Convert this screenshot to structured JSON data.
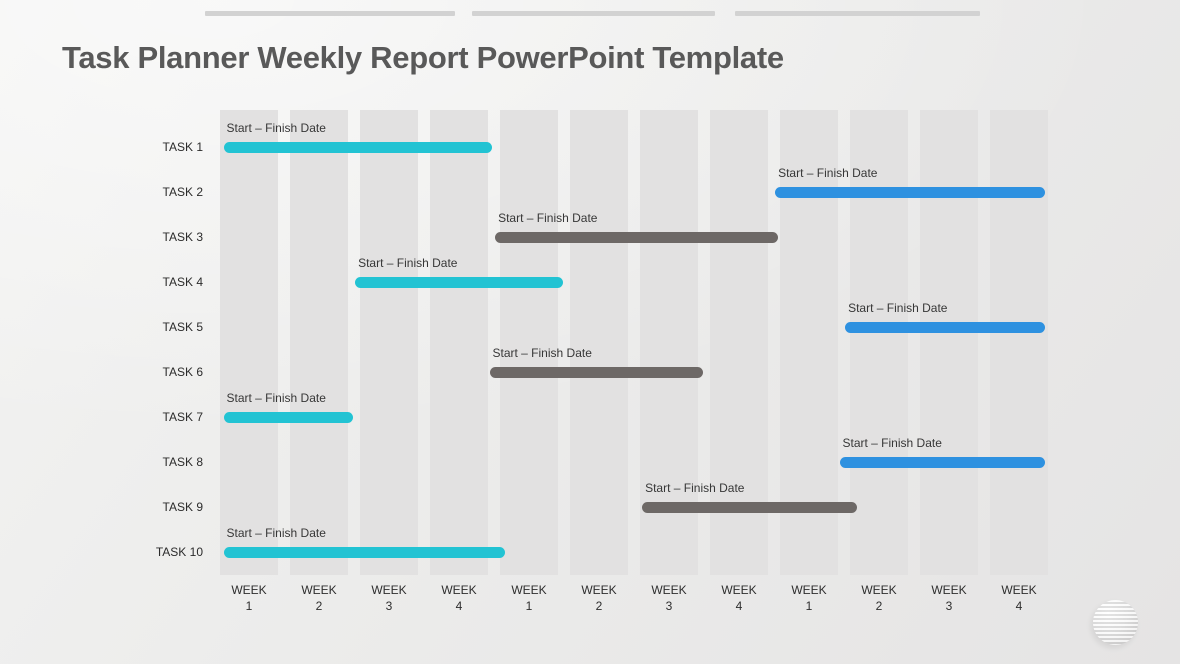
{
  "page": {
    "title": "Task Planner Weekly Report PowerPoint Template"
  },
  "decor": {
    "top_placeholder_bar_color": "#d2d2d2",
    "logo": "striped-sphere"
  },
  "colors": {
    "cyan": "#22c3d3",
    "blue": "#2e91e0",
    "gray": "#6d6866",
    "band": "#e2e1e1",
    "title_text": "#595959",
    "label_text": "#2b2b2b"
  },
  "chart_data": {
    "type": "gantt",
    "title": "Task Planner Weekly Report",
    "x_axis": {
      "unit": "weeks",
      "range_weeks": [
        0,
        12
      ],
      "labels": [
        {
          "l1": "WEEK",
          "l2": "1"
        },
        {
          "l1": "WEEK",
          "l2": "2"
        },
        {
          "l1": "WEEK",
          "l2": "3"
        },
        {
          "l1": "WEEK",
          "l2": "4"
        },
        {
          "l1": "WEEK",
          "l2": "1"
        },
        {
          "l1": "WEEK",
          "l2": "2"
        },
        {
          "l1": "WEEK",
          "l2": "3"
        },
        {
          "l1": "WEEK",
          "l2": "4"
        },
        {
          "l1": "WEEK",
          "l2": "1"
        },
        {
          "l1": "WEEK",
          "l2": "2"
        },
        {
          "l1": "WEEK",
          "l2": "3"
        },
        {
          "l1": "WEEK",
          "l2": "4"
        }
      ]
    },
    "bars": [
      {
        "task": "TASK 1",
        "label": "Start – Finish Date",
        "start_week": 0.05,
        "end_week": 3.88,
        "series": "cyan"
      },
      {
        "task": "TASK 2",
        "label": "Start – Finish Date",
        "start_week": 7.93,
        "end_week": 11.78,
        "series": "blue"
      },
      {
        "task": "TASK 3",
        "label": "Start – Finish Date",
        "start_week": 3.93,
        "end_week": 7.97,
        "series": "gray"
      },
      {
        "task": "TASK 4",
        "label": "Start – Finish Date",
        "start_week": 1.93,
        "end_week": 4.9,
        "series": "cyan"
      },
      {
        "task": "TASK 5",
        "label": "Start – Finish Date",
        "start_week": 8.93,
        "end_week": 11.78,
        "series": "blue"
      },
      {
        "task": "TASK 6",
        "label": "Start – Finish Date",
        "start_week": 3.85,
        "end_week": 6.9,
        "series": "gray"
      },
      {
        "task": "TASK 7",
        "label": "Start – Finish Date",
        "start_week": 0.05,
        "end_week": 1.9,
        "series": "cyan"
      },
      {
        "task": "TASK 8",
        "label": "Start – Finish Date",
        "start_week": 8.85,
        "end_week": 11.78,
        "series": "blue"
      },
      {
        "task": "TASK 9",
        "label": "Start – Finish Date",
        "start_week": 6.03,
        "end_week": 9.1,
        "series": "gray"
      },
      {
        "task": "TASK 10",
        "label": "Start – Finish Date",
        "start_week": 0.05,
        "end_week": 4.07,
        "series": "cyan"
      }
    ]
  }
}
